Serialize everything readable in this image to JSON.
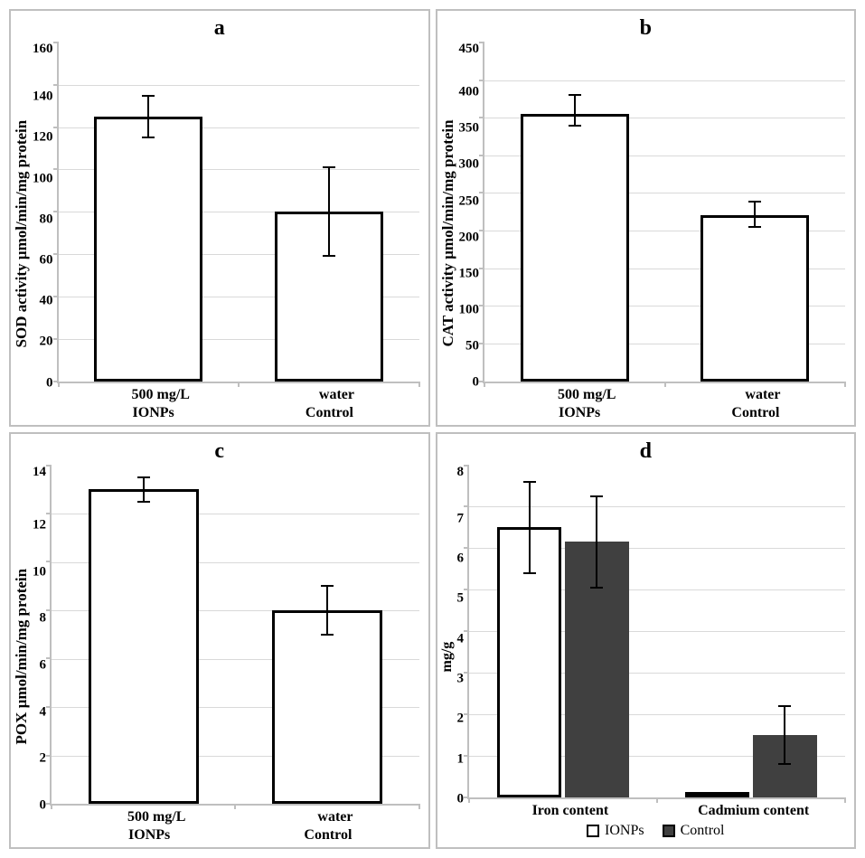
{
  "panels": {
    "a": {
      "title": "a",
      "ylabel": "SOD activity µmol/min/mg protein",
      "ylim": [
        0,
        160
      ],
      "ytick_step": 20,
      "yticks": [
        160,
        140,
        120,
        100,
        80,
        60,
        40,
        20,
        0
      ],
      "categories_top": [
        "500 mg/L",
        "water"
      ],
      "categories_bot": [
        "IONPs",
        "Control"
      ],
      "values": [
        125,
        80
      ],
      "err_up": [
        10,
        21
      ],
      "err_dn": [
        10,
        21
      ],
      "bar_colors": [
        "#ffffff",
        "#ffffff"
      ],
      "bar_border": "#000000",
      "grid_color": "#d9d9d9",
      "bar_width_pct": 30
    },
    "b": {
      "title": "b",
      "ylabel": "CAT activity µmol/min/mg protein",
      "ylim": [
        0,
        450
      ],
      "ytick_step": 50,
      "yticks": [
        450,
        400,
        350,
        300,
        250,
        200,
        150,
        100,
        50,
        0
      ],
      "categories_top": [
        "500 mg/L",
        "water"
      ],
      "categories_bot": [
        "IONPs",
        "Control"
      ],
      "values": [
        355,
        220
      ],
      "err_up": [
        25,
        18
      ],
      "err_dn": [
        15,
        15
      ],
      "bar_colors": [
        "#ffffff",
        "#ffffff"
      ],
      "bar_border": "#000000",
      "grid_color": "#d9d9d9",
      "bar_width_pct": 30
    },
    "c": {
      "title": "c",
      "ylabel": "POX µmol/min/mg protein",
      "ylim": [
        0,
        14
      ],
      "ytick_step": 2,
      "yticks": [
        14,
        12,
        10,
        8,
        6,
        4,
        2,
        0
      ],
      "categories_top": [
        "500 mg/L",
        "water"
      ],
      "categories_bot": [
        "IONPs",
        "Control"
      ],
      "values": [
        13,
        8
      ],
      "err_up": [
        0.5,
        1.0
      ],
      "err_dn": [
        0.5,
        1.0
      ],
      "bar_colors": [
        "#ffffff",
        "#ffffff"
      ],
      "bar_border": "#000000",
      "grid_color": "#d9d9d9",
      "bar_width_pct": 30
    },
    "d": {
      "title": "d",
      "ylabel": "mg/g",
      "ylim": [
        0,
        8
      ],
      "ytick_step": 1,
      "yticks": [
        8,
        7,
        6,
        5,
        4,
        3,
        2,
        1,
        0
      ],
      "groups": [
        "Iron content",
        "Cadmium content"
      ],
      "series": [
        "IONPs",
        "Control"
      ],
      "values": [
        [
          6.5,
          6.15
        ],
        [
          0.05,
          1.5
        ]
      ],
      "err_up": [
        [
          1.1,
          1.1
        ],
        [
          0,
          0.7
        ]
      ],
      "err_dn": [
        [
          1.1,
          1.1
        ],
        [
          0,
          0.7
        ]
      ],
      "series_colors": [
        "#ffffff",
        "#404040"
      ],
      "series_borders": [
        "#000000",
        "#404040"
      ],
      "grid_color": "#d9d9d9",
      "bar_width_pct": 17,
      "legend": [
        "IONPs",
        "Control"
      ]
    }
  },
  "colors": {
    "panel_border": "#bfbfbf",
    "axis": "#bfbfbf",
    "background": "#ffffff"
  }
}
